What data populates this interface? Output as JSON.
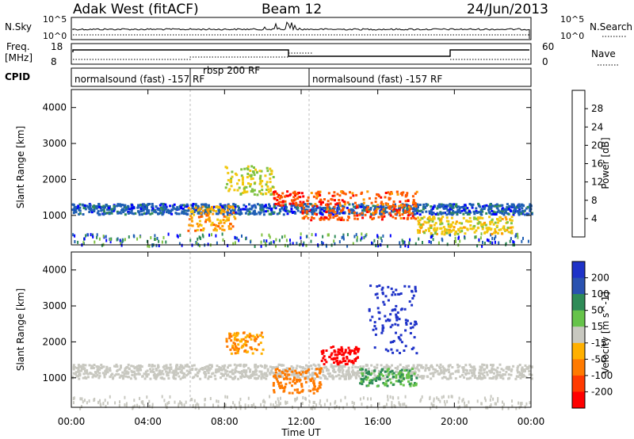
{
  "header": {
    "radar": "Adak West (fitACF)",
    "beam": "Beam 12",
    "date": "24/Jun/2013"
  },
  "nsky_panel": {
    "left_label": "N.Sky",
    "right_label": "N.Search",
    "left_ticks": [
      "10^5",
      "10^0"
    ],
    "right_ticks": [
      "10^5",
      "10^0"
    ]
  },
  "freq_panel": {
    "left_label_1": "Freq.",
    "left_label_2": "[MHz]",
    "right_label": "Nave",
    "left_ticks": [
      "18",
      "8"
    ],
    "right_ticks": [
      "60",
      "0"
    ]
  },
  "cpid_panel": {
    "label": "CPID",
    "segments": [
      {
        "text": "normalsound (fast) -157 RF",
        "start": 0.0,
        "end": 6.0
      },
      {
        "text": "rbsp 200 RF",
        "start": 6.0,
        "end": 12.0
      },
      {
        "text": "normalsound (fast) -157 RF",
        "start": 12.0,
        "end": 24.0
      }
    ]
  },
  "x_axis": {
    "label": "Time UT",
    "ticks": [
      "00:00",
      "04:00",
      "08:00",
      "12:00",
      "16:00",
      "20:00",
      "00:00"
    ]
  },
  "y_axis": {
    "label": "Slant Range [km]",
    "ticks": [
      "1000",
      "2000",
      "3000",
      "4000"
    ]
  },
  "power_colorbar": {
    "label": "Power [dB]",
    "ticks": [
      "4",
      "8",
      "12",
      "16",
      "20",
      "24",
      "28"
    ],
    "colors": [
      "#0000ff",
      "#1f5fb4",
      "#2e8b57",
      "#7fc241",
      "#f2c80f",
      "#ff9b00",
      "#ff5a00",
      "#ff0000"
    ]
  },
  "velocity_colorbar": {
    "label": "Velocity [m s^-1]",
    "ticks": [
      "200",
      "100",
      "50",
      "15",
      "-15",
      "-50",
      "-100",
      "-200"
    ],
    "colors": [
      "#1e32c8",
      "#2a52b0",
      "#2e8b57",
      "#66c34a",
      "#c8c8c0",
      "#ffb000",
      "#ff7a00",
      "#ff3a00",
      "#ff0000"
    ]
  },
  "chart_data": [
    {
      "type": "heatmap",
      "panel": "power",
      "x_range_hours": [
        0,
        24
      ],
      "ylim": [
        180,
        4500
      ],
      "features": [
        {
          "start_time": "00:00",
          "end_time": "24:00",
          "range_km": [
            1050,
            1350
          ],
          "power_db": 6
        },
        {
          "start_time": "06:00",
          "end_time": "08:30",
          "range_km": [
            600,
            1300
          ],
          "power_db": 22
        },
        {
          "start_time": "08:00",
          "end_time": "10:30",
          "range_km": [
            1600,
            2400
          ],
          "power_db": 16
        },
        {
          "start_time": "10:30",
          "end_time": "12:00",
          "range_km": [
            1300,
            1700
          ],
          "power_db": 28
        },
        {
          "start_time": "12:00",
          "end_time": "18:00",
          "range_km": [
            900,
            1700
          ],
          "power_db": 26
        },
        {
          "start_time": "18:00",
          "end_time": "23:00",
          "range_km": [
            500,
            1000
          ],
          "power_db": 18
        }
      ]
    },
    {
      "type": "heatmap",
      "panel": "velocity",
      "x_range_hours": [
        0,
        24
      ],
      "ylim": [
        180,
        4500
      ],
      "features": [
        {
          "start_time": "00:00",
          "end_time": "24:00",
          "range_km": [
            1000,
            1400
          ],
          "velocity": 0
        },
        {
          "start_time": "08:00",
          "end_time": "10:00",
          "range_km": [
            1700,
            2300
          ],
          "velocity": -50
        },
        {
          "start_time": "10:30",
          "end_time": "13:00",
          "range_km": [
            600,
            1300
          ],
          "velocity": -60
        },
        {
          "start_time": "13:00",
          "end_time": "15:00",
          "range_km": [
            1400,
            1900
          ],
          "velocity": -200
        },
        {
          "start_time": "15:00",
          "end_time": "18:00",
          "range_km": [
            800,
            1300
          ],
          "velocity": 30
        },
        {
          "start_time": "15:30",
          "end_time": "18:00",
          "range_km": [
            1700,
            3600
          ],
          "velocity": 200
        }
      ]
    }
  ]
}
